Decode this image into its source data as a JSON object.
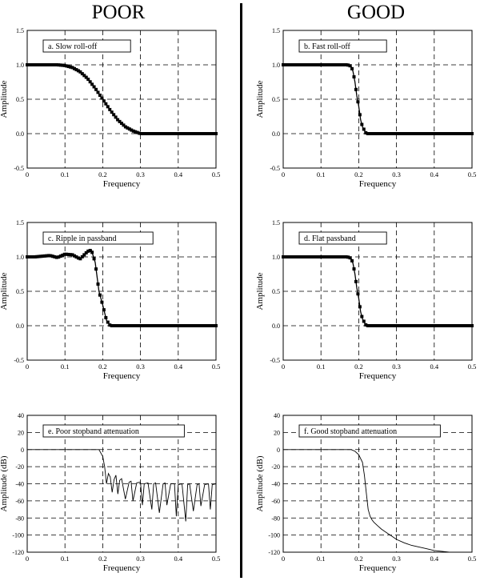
{
  "columns": {
    "left": "POOR",
    "right": "GOOD"
  },
  "chart_data": [
    {
      "id": "a",
      "type": "line",
      "annotation": "a.  Slow roll-off",
      "xlabel": "Frequency",
      "ylabel": "Amplitude",
      "xlim": [
        0,
        0.5
      ],
      "ylim": [
        -0.5,
        1.5
      ],
      "xticks": [
        "0",
        "0.1",
        "0.2",
        "0.3",
        "0.4",
        "0.5"
      ],
      "yticks": [
        "-0.5",
        "0.0",
        "0.5",
        "1.0",
        "1.5"
      ],
      "grid": true,
      "markers": true,
      "x": [
        0,
        0.05,
        0.08,
        0.1,
        0.12,
        0.14,
        0.16,
        0.18,
        0.2,
        0.22,
        0.24,
        0.26,
        0.28,
        0.3,
        0.35,
        0.4,
        0.45,
        0.5
      ],
      "y": [
        1.0,
        1.0,
        1.0,
        0.99,
        0.96,
        0.9,
        0.8,
        0.66,
        0.5,
        0.34,
        0.2,
        0.1,
        0.04,
        0.0,
        0.0,
        0.0,
        0.0,
        0.0
      ]
    },
    {
      "id": "b",
      "type": "line",
      "annotation": "b.  Fast roll-off",
      "xlabel": "Frequency",
      "ylabel": "Amplitude",
      "xlim": [
        0,
        0.5
      ],
      "ylim": [
        -0.5,
        1.5
      ],
      "xticks": [
        "0",
        "0.1",
        "0.2",
        "0.3",
        "0.4",
        "0.5"
      ],
      "yticks": [
        "-0.5",
        "0.0",
        "0.5",
        "1.0",
        "1.5"
      ],
      "grid": true,
      "markers": true,
      "x": [
        0,
        0.1,
        0.17,
        0.18,
        0.185,
        0.19,
        0.195,
        0.2,
        0.205,
        0.21,
        0.22,
        0.3,
        0.4,
        0.5
      ],
      "y": [
        1.0,
        1.0,
        1.0,
        0.98,
        0.9,
        0.75,
        0.55,
        0.4,
        0.2,
        0.1,
        0.0,
        0.0,
        0.0,
        0.0
      ]
    },
    {
      "id": "c",
      "type": "line",
      "annotation": "c.  Ripple in passband",
      "xlabel": "Frequency",
      "ylabel": "Amplitude",
      "xlim": [
        0,
        0.5
      ],
      "ylim": [
        -0.5,
        1.5
      ],
      "xticks": [
        "0",
        "0.1",
        "0.2",
        "0.3",
        "0.4",
        "0.5"
      ],
      "yticks": [
        "-0.5",
        "0.0",
        "0.5",
        "1.0",
        "1.5"
      ],
      "grid": true,
      "markers": true,
      "x": [
        0,
        0.02,
        0.04,
        0.06,
        0.08,
        0.1,
        0.12,
        0.14,
        0.16,
        0.17,
        0.18,
        0.19,
        0.2,
        0.21,
        0.22,
        0.3,
        0.4,
        0.5
      ],
      "y": [
        1.0,
        1.0,
        1.01,
        1.02,
        0.99,
        1.04,
        1.03,
        0.97,
        1.08,
        1.1,
        0.92,
        0.5,
        0.3,
        0.08,
        0.0,
        0.0,
        0.0,
        0.0
      ]
    },
    {
      "id": "d",
      "type": "line",
      "annotation": "d.  Flat passband",
      "xlabel": "Frequency",
      "ylabel": "Amplitude",
      "xlim": [
        0,
        0.5
      ],
      "ylim": [
        -0.5,
        1.5
      ],
      "xticks": [
        "0",
        "0.1",
        "0.2",
        "0.3",
        "0.4",
        "0.5"
      ],
      "yticks": [
        "-0.5",
        "0.0",
        "0.5",
        "1.0",
        "1.5"
      ],
      "grid": true,
      "markers": true,
      "x": [
        0,
        0.1,
        0.17,
        0.18,
        0.185,
        0.19,
        0.195,
        0.2,
        0.205,
        0.21,
        0.22,
        0.3,
        0.4,
        0.5
      ],
      "y": [
        1.0,
        1.0,
        1.0,
        0.98,
        0.9,
        0.75,
        0.55,
        0.4,
        0.2,
        0.1,
        0.0,
        0.0,
        0.0,
        0.0
      ]
    },
    {
      "id": "e",
      "type": "line",
      "annotation": "e.  Poor stopband attenuation",
      "xlabel": "Frequency",
      "ylabel": "Amplitude (dB)",
      "xlim": [
        0,
        0.5
      ],
      "ylim": [
        -120,
        40
      ],
      "xticks": [
        "0",
        "0.1",
        "0.2",
        "0.3",
        "0.4",
        "0.5"
      ],
      "yticks": [
        "-120",
        "-100",
        "-80",
        "-60",
        "-40",
        "-20",
        "0",
        "20",
        "40"
      ],
      "grid": true,
      "markers": false,
      "x": [
        0,
        0.19,
        0.2,
        0.205,
        0.21,
        0.215,
        0.22,
        0.225,
        0.23,
        0.235,
        0.24,
        0.245,
        0.25,
        0.26,
        0.27,
        0.275,
        0.28,
        0.29,
        0.3,
        0.305,
        0.31,
        0.32,
        0.33,
        0.335,
        0.34,
        0.35,
        0.36,
        0.365,
        0.37,
        0.38,
        0.39,
        0.395,
        0.4,
        0.41,
        0.42,
        0.425,
        0.43,
        0.44,
        0.45,
        0.455,
        0.46,
        0.47,
        0.48,
        0.485,
        0.49,
        0.5
      ],
      "y": [
        0,
        0,
        -8,
        -20,
        -40,
        -28,
        -32,
        -50,
        -35,
        -30,
        -52,
        -36,
        -34,
        -58,
        -38,
        -37,
        -60,
        -39,
        -38,
        -65,
        -40,
        -39,
        -70,
        -40,
        -39,
        -74,
        -40,
        -39,
        -65,
        -40,
        -40,
        -78,
        -41,
        -40,
        -84,
        -41,
        -40,
        -72,
        -41,
        -40,
        -66,
        -41,
        -40,
        -70,
        -41,
        -40
      ]
    },
    {
      "id": "f",
      "type": "line",
      "annotation": "f.  Good stopband attenuation",
      "xlabel": "Frequency",
      "ylabel": "Amplitude (dB)",
      "xlim": [
        0,
        0.5
      ],
      "ylim": [
        -120,
        40
      ],
      "xticks": [
        "0",
        "0.1",
        "0.2",
        "0.3",
        "0.4",
        "0.5"
      ],
      "yticks": [
        "-120",
        "-100",
        "-80",
        "-60",
        "-40",
        "-20",
        "0",
        "20",
        "40"
      ],
      "grid": true,
      "markers": false,
      "x": [
        0,
        0.18,
        0.19,
        0.2,
        0.21,
        0.215,
        0.22,
        0.225,
        0.23,
        0.235,
        0.24,
        0.25,
        0.26,
        0.27,
        0.28,
        0.29,
        0.3,
        0.32,
        0.34,
        0.36,
        0.38,
        0.4,
        0.42,
        0.44
      ],
      "y": [
        0,
        0,
        -2,
        -6,
        -15,
        -30,
        -50,
        -70,
        -78,
        -82,
        -85,
        -89,
        -93,
        -96,
        -99,
        -102,
        -105,
        -109,
        -112,
        -114,
        -116,
        -118,
        -119,
        -120
      ]
    }
  ]
}
